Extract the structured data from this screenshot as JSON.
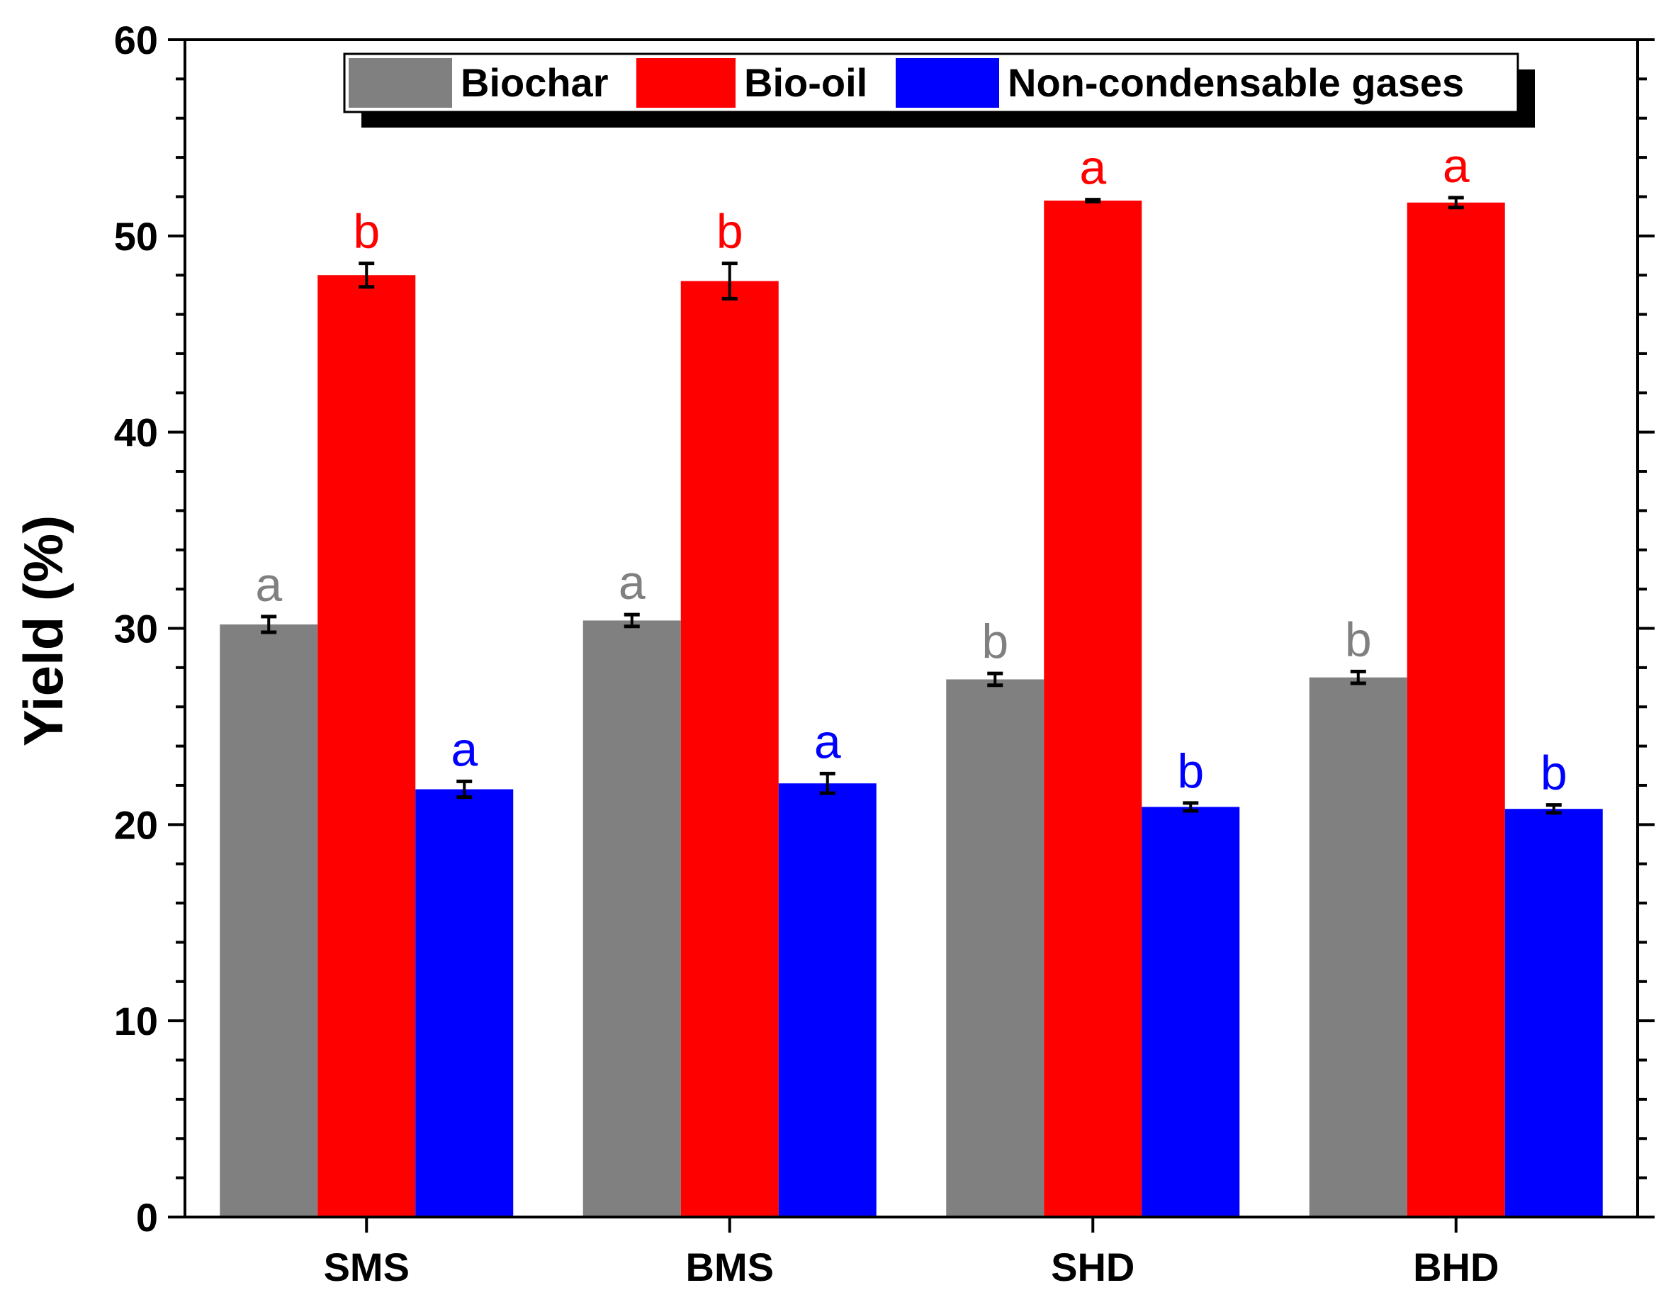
{
  "chart_data": {
    "type": "bar",
    "title": "",
    "xlabel": "",
    "ylabel": "Yield (%)",
    "ylim": [
      0,
      60
    ],
    "yticks": [
      0,
      10,
      20,
      30,
      40,
      50,
      60
    ],
    "grid": false,
    "legend_position": "top",
    "categories": [
      "SMS",
      "BMS",
      "SHD",
      "BHD"
    ],
    "series": [
      {
        "name": "Biochar",
        "color": "#808080",
        "values": [
          30.2,
          30.4,
          27.4,
          27.5
        ],
        "errors": [
          0.4,
          0.3,
          0.3,
          0.3
        ],
        "letters": [
          "a",
          "a",
          "b",
          "b"
        ]
      },
      {
        "name": "Bio-oil",
        "color": "#ff0000",
        "values": [
          48.0,
          47.7,
          51.8,
          51.7
        ],
        "errors": [
          0.6,
          0.9,
          0.05,
          0.25
        ],
        "letters": [
          "b",
          "b",
          "a",
          "a"
        ]
      },
      {
        "name": "Non-condensable gases",
        "color": "#0000ff",
        "values": [
          21.8,
          22.1,
          20.9,
          20.8
        ],
        "errors": [
          0.4,
          0.5,
          0.2,
          0.2
        ],
        "letters": [
          "a",
          "a",
          "b",
          "b"
        ]
      }
    ]
  }
}
